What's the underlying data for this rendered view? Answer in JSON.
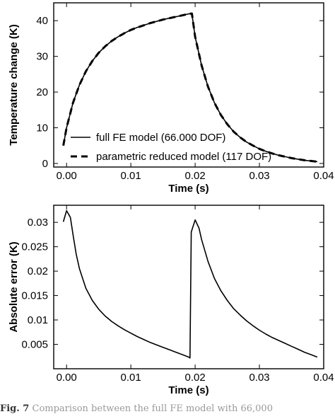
{
  "caption": {
    "label": "Fig. 7",
    "text": "Comparison between the full FE model with 66,000"
  },
  "chart_data": [
    {
      "type": "line",
      "title": "",
      "xlabel": "Time (s)",
      "ylabel": "Temperature change (K)",
      "xlim": [
        -0.002,
        0.04
      ],
      "ylim": [
        -1,
        45
      ],
      "xticks": [
        0.0,
        0.01,
        0.02,
        0.03,
        0.04
      ],
      "xtick_labels": [
        "0.00",
        "0.01",
        "0.02",
        "0.03",
        "0.04"
      ],
      "yticks": [
        0,
        10,
        20,
        30,
        40
      ],
      "ytick_labels": [
        "0",
        "10",
        "20",
        "30",
        "40"
      ],
      "grid": false,
      "legend": "bottom-left",
      "series": [
        {
          "name": "full FE model (66.000 DOF)",
          "style": "solid",
          "color": "#000000",
          "x": [
            -0.0005,
            0.0,
            0.001,
            0.002,
            0.003,
            0.004,
            0.005,
            0.006,
            0.007,
            0.008,
            0.009,
            0.01,
            0.011,
            0.012,
            0.013,
            0.014,
            0.015,
            0.016,
            0.017,
            0.018,
            0.019,
            0.0195,
            0.02,
            0.021,
            0.022,
            0.023,
            0.024,
            0.025,
            0.026,
            0.027,
            0.028,
            0.029,
            0.03,
            0.031,
            0.032,
            0.033,
            0.034,
            0.035,
            0.036,
            0.037,
            0.038,
            0.039
          ],
          "y": [
            5.0,
            10.0,
            17.0,
            22.0,
            25.8,
            28.7,
            31.0,
            32.8,
            34.3,
            35.5,
            36.5,
            37.4,
            38.1,
            38.7,
            39.3,
            39.8,
            40.3,
            40.7,
            41.1,
            41.5,
            41.9,
            42.0,
            35.5,
            27.5,
            21.5,
            17.0,
            13.6,
            11.0,
            8.9,
            7.3,
            6.0,
            5.0,
            4.1,
            3.4,
            2.8,
            2.3,
            1.9,
            1.5,
            1.2,
            0.9,
            0.7,
            0.5
          ]
        },
        {
          "name": "parametric reduced model (117 DOF)",
          "style": "dashed",
          "color": "#000000",
          "x": [
            -0.0005,
            0.0,
            0.001,
            0.002,
            0.003,
            0.004,
            0.005,
            0.006,
            0.007,
            0.008,
            0.009,
            0.01,
            0.011,
            0.012,
            0.013,
            0.014,
            0.015,
            0.016,
            0.017,
            0.018,
            0.019,
            0.0195,
            0.02,
            0.021,
            0.022,
            0.023,
            0.024,
            0.025,
            0.026,
            0.027,
            0.028,
            0.029,
            0.03,
            0.031,
            0.032,
            0.033,
            0.034,
            0.035,
            0.036,
            0.037,
            0.038,
            0.039
          ],
          "y": [
            5.0,
            10.0,
            17.0,
            22.0,
            25.8,
            28.7,
            31.0,
            32.8,
            34.3,
            35.5,
            36.5,
            37.4,
            38.1,
            38.7,
            39.3,
            39.8,
            40.3,
            40.7,
            41.1,
            41.5,
            41.9,
            42.0,
            35.5,
            27.5,
            21.5,
            17.0,
            13.6,
            11.0,
            8.9,
            7.3,
            6.0,
            5.0,
            4.1,
            3.4,
            2.8,
            2.3,
            1.9,
            1.5,
            1.2,
            0.9,
            0.7,
            0.5
          ]
        }
      ]
    },
    {
      "type": "line",
      "title": "",
      "xlabel": "Time (s)",
      "ylabel": "Absolute error (K)",
      "xlim": [
        -0.002,
        0.04
      ],
      "ylim": [
        0.0,
        0.0335
      ],
      "xticks": [
        0.0,
        0.01,
        0.02,
        0.03,
        0.04
      ],
      "xtick_labels": [
        "0.00",
        "0.01",
        "0.02",
        "0.03",
        "0.04"
      ],
      "yticks": [
        0.005,
        0.01,
        0.015,
        0.02,
        0.025,
        0.03
      ],
      "ytick_labels": [
        "0.005",
        "0.01",
        "0.015",
        "0.02",
        "0.025",
        "0.03"
      ],
      "grid": false,
      "legend": "none",
      "series": [
        {
          "name": "",
          "style": "solid",
          "color": "#000000",
          "x": [
            -0.0005,
            0.0,
            0.0006,
            0.001,
            0.0015,
            0.002,
            0.003,
            0.004,
            0.005,
            0.006,
            0.007,
            0.008,
            0.009,
            0.01,
            0.011,
            0.012,
            0.013,
            0.014,
            0.015,
            0.016,
            0.017,
            0.018,
            0.019,
            0.0192,
            0.0194,
            0.02,
            0.0206,
            0.021,
            0.022,
            0.023,
            0.024,
            0.025,
            0.026,
            0.027,
            0.028,
            0.029,
            0.03,
            0.031,
            0.032,
            0.033,
            0.034,
            0.035,
            0.036,
            0.037,
            0.038,
            0.039
          ],
          "y": [
            0.0301,
            0.0324,
            0.031,
            0.0275,
            0.0235,
            0.0205,
            0.0165,
            0.014,
            0.0122,
            0.0108,
            0.0097,
            0.0088,
            0.008,
            0.0073,
            0.0066,
            0.006,
            0.0054,
            0.0049,
            0.0044,
            0.0039,
            0.0034,
            0.0029,
            0.0024,
            0.0022,
            0.028,
            0.0305,
            0.0288,
            0.0265,
            0.022,
            0.0185,
            0.016,
            0.014,
            0.0123,
            0.011,
            0.0098,
            0.0088,
            0.0079,
            0.0071,
            0.0064,
            0.0058,
            0.0052,
            0.0046,
            0.004,
            0.0034,
            0.0029,
            0.0024
          ]
        }
      ]
    }
  ]
}
